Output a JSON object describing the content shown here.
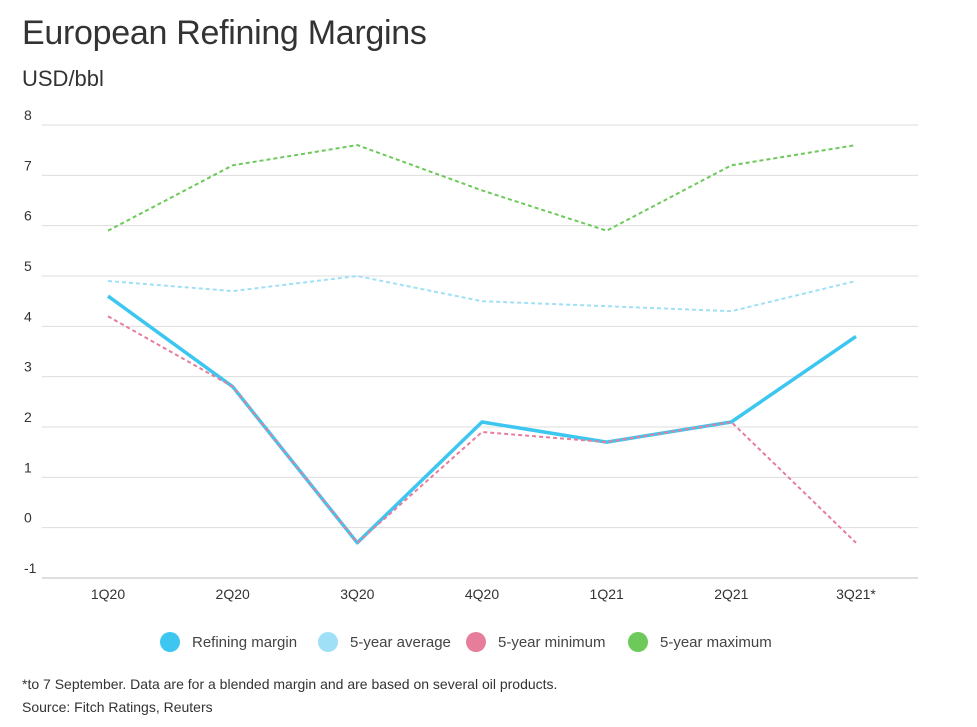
{
  "chart_data": {
    "type": "line",
    "title": "European Refining Margins",
    "unit_label": "USD/bbl",
    "categories": [
      "1Q20",
      "2Q20",
      "3Q20",
      "4Q20",
      "1Q21",
      "2Q21",
      "3Q21*"
    ],
    "ylim": [
      -1,
      8
    ],
    "yticks": [
      8,
      7,
      6,
      5,
      4,
      3,
      2,
      1,
      0,
      -1
    ],
    "grid": true,
    "legend_position": "bottom",
    "series": [
      {
        "name": "Refining margin",
        "color": "#3cc6f0",
        "style": "solid",
        "values": [
          4.6,
          2.8,
          -0.3,
          2.1,
          1.7,
          2.1,
          3.8
        ]
      },
      {
        "name": "5-year average",
        "color": "#9fe0f7",
        "style": "dashed",
        "values": [
          4.9,
          4.7,
          5.0,
          4.5,
          4.4,
          4.3,
          4.9
        ]
      },
      {
        "name": "5-year minimum",
        "color": "#e67e9b",
        "style": "dashed",
        "values": [
          4.2,
          2.8,
          -0.3,
          1.9,
          1.7,
          2.1,
          -0.3
        ]
      },
      {
        "name": "5-year maximum",
        "color": "#6cc95a",
        "style": "dashed",
        "values": [
          5.9,
          7.2,
          7.6,
          6.7,
          5.9,
          7.2,
          7.6
        ]
      }
    ]
  },
  "footnote": "*to 7 September. Data are for a blended margin and are based on several oil products.",
  "source": "Source: Fitch Ratings, Reuters"
}
